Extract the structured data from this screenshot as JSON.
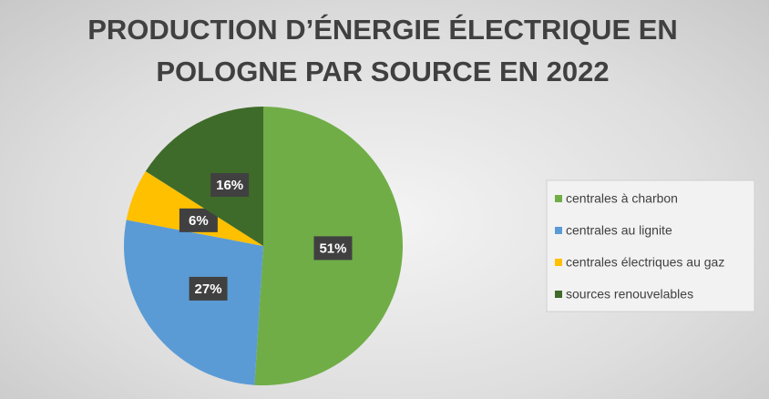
{
  "chart_data": {
    "type": "pie",
    "title": "PRODUCTION D’ÉNERGIE ÉLECTRIQUE EN POLOGNE PAR SOURCE EN 2022",
    "categories": [
      "centrales à charbon",
      "centrales au lignite",
      "centrales électriques au gaz",
      "sources renouvelables"
    ],
    "values": [
      51,
      27,
      6,
      16
    ],
    "value_labels": [
      "51%",
      "27%",
      "6%",
      "16%"
    ],
    "colors": [
      "#70ad47",
      "#5b9bd5",
      "#ffc000",
      "#3f6b2a"
    ],
    "legend": "right"
  }
}
